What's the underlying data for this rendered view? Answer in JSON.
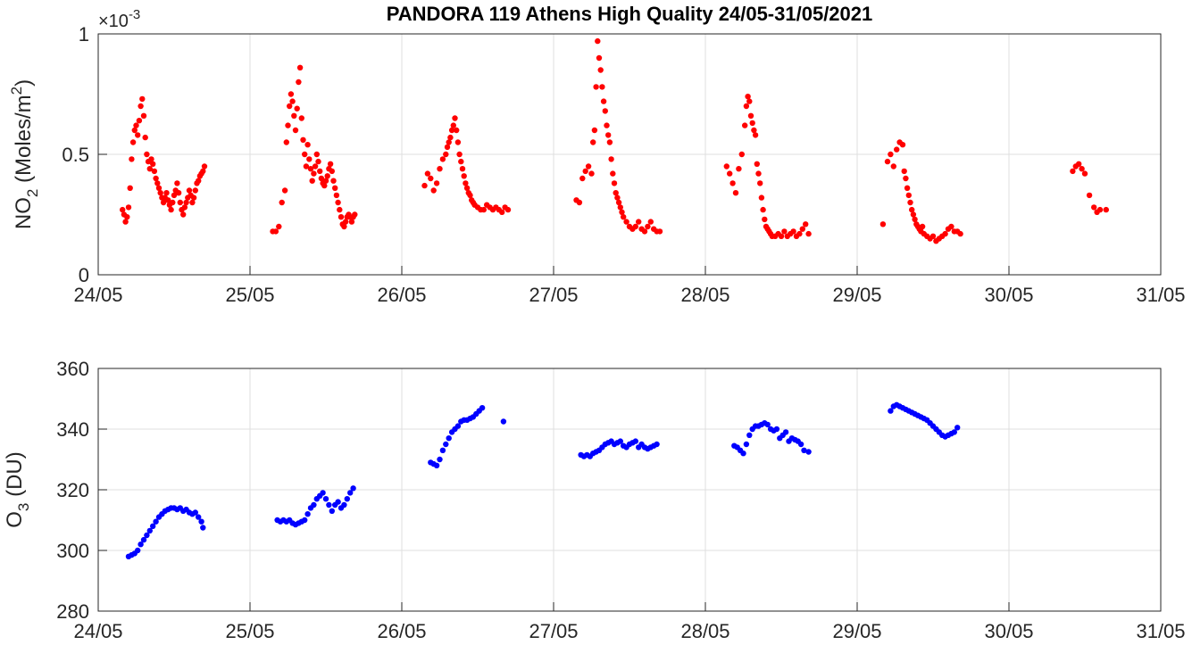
{
  "figure": {
    "title": "PANDORA 119 Athens High Quality 24/05-31/05/2021"
  },
  "chart_data": [
    {
      "type": "scatter",
      "id": "no2",
      "title": "PANDORA 119 Athens High Quality 24/05-31/05/2021",
      "ylabel_main": "NO",
      "ylabel_sub": "2",
      "ylabel_mid": " (Moles/m",
      "ylabel_sup": "2",
      "ylabel_end": ")",
      "y_exponent_label": "×10",
      "y_exponent_power": "-3",
      "xlim": [
        0,
        7
      ],
      "ylim": [
        0,
        1
      ],
      "xticks": [
        0,
        1,
        2,
        3,
        4,
        5,
        6,
        7
      ],
      "xtick_labels": [
        "24/05",
        "25/05",
        "26/05",
        "27/05",
        "28/05",
        "29/05",
        "30/05",
        "31/05"
      ],
      "yticks": [
        0,
        0.5,
        1
      ],
      "ytick_labels": [
        "0",
        "0.5",
        "1"
      ],
      "grid": true,
      "color": "#ff0000",
      "series": [
        {
          "x": [
            0.16,
            0.17,
            0.18,
            0.19,
            0.2,
            0.21,
            0.22,
            0.23,
            0.24,
            0.25,
            0.26,
            0.27,
            0.28,
            0.29,
            0.3,
            0.31,
            0.32,
            0.33,
            0.34,
            0.35,
            0.36,
            0.37,
            0.38,
            0.39,
            0.4,
            0.41,
            0.42,
            0.43,
            0.44,
            0.45,
            0.46,
            0.47,
            0.48,
            0.49,
            0.5,
            0.51,
            0.52,
            0.53,
            0.54,
            0.55,
            0.56,
            0.57,
            0.58,
            0.59,
            0.6,
            0.61,
            0.62,
            0.63,
            0.64,
            0.65,
            0.66,
            0.67,
            0.68,
            0.69,
            0.7,
            1.15,
            1.17,
            1.19,
            1.21,
            1.23,
            1.24,
            1.25,
            1.26,
            1.27,
            1.28,
            1.29,
            1.3,
            1.31,
            1.32,
            1.33,
            1.34,
            1.35,
            1.36,
            1.37,
            1.38,
            1.39,
            1.4,
            1.41,
            1.42,
            1.43,
            1.44,
            1.45,
            1.46,
            1.47,
            1.48,
            1.49,
            1.5,
            1.51,
            1.52,
            1.53,
            1.54,
            1.55,
            1.56,
            1.57,
            1.58,
            1.59,
            1.6,
            1.61,
            1.62,
            1.63,
            1.64,
            1.65,
            1.66,
            1.67,
            1.68,
            1.69,
            2.15,
            2.17,
            2.19,
            2.21,
            2.23,
            2.25,
            2.27,
            2.29,
            2.3,
            2.31,
            2.32,
            2.33,
            2.34,
            2.35,
            2.36,
            2.37,
            2.38,
            2.39,
            2.4,
            2.41,
            2.42,
            2.43,
            2.44,
            2.45,
            2.46,
            2.47,
            2.48,
            2.5,
            2.52,
            2.54,
            2.56,
            2.58,
            2.6,
            2.62,
            2.64,
            2.66,
            2.68,
            2.7,
            3.15,
            3.17,
            3.19,
            3.21,
            3.23,
            3.25,
            3.26,
            3.27,
            3.28,
            3.29,
            3.3,
            3.31,
            3.32,
            3.33,
            3.34,
            3.35,
            3.36,
            3.37,
            3.38,
            3.39,
            3.4,
            3.41,
            3.42,
            3.43,
            3.44,
            3.45,
            3.46,
            3.48,
            3.5,
            3.52,
            3.54,
            3.56,
            3.58,
            3.6,
            3.62,
            3.64,
            3.66,
            3.68,
            3.7,
            4.14,
            4.16,
            4.18,
            4.2,
            4.22,
            4.24,
            4.26,
            4.27,
            4.28,
            4.29,
            4.3,
            4.31,
            4.32,
            4.33,
            4.34,
            4.35,
            4.36,
            4.37,
            4.38,
            4.39,
            4.4,
            4.41,
            4.42,
            4.43,
            4.44,
            4.46,
            4.48,
            4.5,
            4.52,
            4.54,
            4.56,
            4.58,
            4.6,
            4.62,
            4.64,
            4.66,
            4.68,
            5.17,
            5.2,
            5.22,
            5.24,
            5.26,
            5.28,
            5.3,
            5.31,
            5.32,
            5.33,
            5.34,
            5.35,
            5.36,
            5.37,
            5.38,
            5.39,
            5.4,
            5.41,
            5.42,
            5.43,
            5.44,
            5.46,
            5.48,
            5.5,
            5.52,
            5.54,
            5.56,
            5.58,
            5.6,
            5.62,
            5.64,
            5.66,
            5.68,
            6.42,
            6.44,
            6.46,
            6.48,
            6.5,
            6.53,
            6.56,
            6.58,
            6.6,
            6.64
          ],
          "y": [
            0.27,
            0.25,
            0.22,
            0.24,
            0.28,
            0.36,
            0.48,
            0.55,
            0.6,
            0.62,
            0.58,
            0.64,
            0.7,
            0.73,
            0.66,
            0.57,
            0.5,
            0.47,
            0.44,
            0.48,
            0.46,
            0.43,
            0.4,
            0.38,
            0.36,
            0.34,
            0.32,
            0.3,
            0.32,
            0.34,
            0.31,
            0.29,
            0.27,
            0.3,
            0.33,
            0.35,
            0.38,
            0.34,
            0.3,
            0.27,
            0.25,
            0.28,
            0.3,
            0.32,
            0.35,
            0.33,
            0.3,
            0.32,
            0.35,
            0.38,
            0.39,
            0.41,
            0.42,
            0.43,
            0.45,
            0.18,
            0.18,
            0.2,
            0.3,
            0.35,
            0.55,
            0.62,
            0.7,
            0.75,
            0.72,
            0.66,
            0.6,
            0.69,
            0.8,
            0.86,
            0.65,
            0.56,
            0.5,
            0.45,
            0.54,
            0.48,
            0.44,
            0.39,
            0.42,
            0.45,
            0.5,
            0.47,
            0.43,
            0.4,
            0.38,
            0.37,
            0.39,
            0.41,
            0.44,
            0.46,
            0.43,
            0.39,
            0.36,
            0.33,
            0.3,
            0.27,
            0.24,
            0.21,
            0.2,
            0.22,
            0.24,
            0.25,
            0.24,
            0.22,
            0.24,
            0.25,
            0.37,
            0.42,
            0.4,
            0.35,
            0.38,
            0.44,
            0.48,
            0.5,
            0.53,
            0.55,
            0.57,
            0.6,
            0.62,
            0.65,
            0.6,
            0.55,
            0.5,
            0.47,
            0.44,
            0.41,
            0.38,
            0.36,
            0.34,
            0.33,
            0.31,
            0.3,
            0.29,
            0.28,
            0.27,
            0.27,
            0.29,
            0.28,
            0.27,
            0.28,
            0.27,
            0.26,
            0.28,
            0.27,
            0.31,
            0.3,
            0.4,
            0.43,
            0.45,
            0.42,
            0.55,
            0.6,
            0.78,
            0.97,
            0.9,
            0.85,
            0.78,
            0.72,
            0.68,
            0.62,
            0.58,
            0.55,
            0.48,
            0.42,
            0.38,
            0.34,
            0.32,
            0.3,
            0.28,
            0.26,
            0.24,
            0.22,
            0.2,
            0.19,
            0.2,
            0.22,
            0.19,
            0.18,
            0.2,
            0.22,
            0.19,
            0.18,
            0.18,
            0.45,
            0.42,
            0.38,
            0.34,
            0.44,
            0.5,
            0.62,
            0.7,
            0.74,
            0.72,
            0.66,
            0.63,
            0.6,
            0.58,
            0.46,
            0.42,
            0.38,
            0.32,
            0.27,
            0.23,
            0.2,
            0.19,
            0.18,
            0.17,
            0.16,
            0.16,
            0.17,
            0.16,
            0.18,
            0.16,
            0.17,
            0.18,
            0.16,
            0.17,
            0.19,
            0.21,
            0.17,
            0.21,
            0.47,
            0.5,
            0.45,
            0.52,
            0.55,
            0.54,
            0.43,
            0.4,
            0.36,
            0.33,
            0.3,
            0.27,
            0.25,
            0.23,
            0.21,
            0.2,
            0.19,
            0.18,
            0.2,
            0.17,
            0.16,
            0.15,
            0.16,
            0.14,
            0.15,
            0.16,
            0.17,
            0.19,
            0.2,
            0.18,
            0.18,
            0.17,
            0.43,
            0.45,
            0.46,
            0.44,
            0.42,
            0.33,
            0.28,
            0.26,
            0.27,
            0.27
          ]
        }
      ]
    },
    {
      "type": "scatter",
      "id": "o3",
      "ylabel_main": "O",
      "ylabel_sub": "3",
      "ylabel_end": " (DU)",
      "xlim": [
        0,
        7
      ],
      "ylim": [
        280,
        360
      ],
      "xticks": [
        0,
        1,
        2,
        3,
        4,
        5,
        6,
        7
      ],
      "xtick_labels": [
        "24/05",
        "25/05",
        "26/05",
        "27/05",
        "28/05",
        "29/05",
        "30/05",
        "31/05"
      ],
      "yticks": [
        280,
        300,
        320,
        340,
        360
      ],
      "ytick_labels": [
        "280",
        "300",
        "320",
        "340",
        "360"
      ],
      "grid": true,
      "color": "#0000ff",
      "series": [
        {
          "x": [
            0.2,
            0.22,
            0.24,
            0.26,
            0.28,
            0.3,
            0.32,
            0.34,
            0.36,
            0.38,
            0.4,
            0.42,
            0.44,
            0.46,
            0.48,
            0.5,
            0.52,
            0.54,
            0.56,
            0.58,
            0.6,
            0.62,
            0.64,
            0.66,
            0.68,
            0.69,
            1.18,
            1.2,
            1.22,
            1.24,
            1.26,
            1.28,
            1.3,
            1.32,
            1.34,
            1.36,
            1.38,
            1.4,
            1.42,
            1.44,
            1.46,
            1.48,
            1.5,
            1.52,
            1.54,
            1.56,
            1.58,
            1.6,
            1.62,
            1.64,
            1.66,
            1.68,
            2.19,
            2.21,
            2.23,
            2.25,
            2.27,
            2.29,
            2.31,
            2.33,
            2.35,
            2.37,
            2.39,
            2.41,
            2.43,
            2.45,
            2.47,
            2.49,
            2.51,
            2.53,
            2.67,
            3.18,
            3.2,
            3.22,
            3.24,
            3.26,
            3.28,
            3.3,
            3.32,
            3.34,
            3.36,
            3.38,
            3.4,
            3.42,
            3.44,
            3.46,
            3.48,
            3.5,
            3.52,
            3.54,
            3.56,
            3.58,
            3.6,
            3.62,
            3.64,
            3.66,
            3.68,
            4.19,
            4.21,
            4.23,
            4.25,
            4.27,
            4.29,
            4.31,
            4.33,
            4.35,
            4.37,
            4.39,
            4.41,
            4.43,
            4.45,
            4.47,
            4.49,
            4.51,
            4.53,
            4.55,
            4.57,
            4.59,
            4.61,
            4.63,
            4.65,
            4.68,
            5.22,
            5.24,
            5.26,
            5.28,
            5.3,
            5.32,
            5.34,
            5.36,
            5.38,
            5.4,
            5.42,
            5.44,
            5.46,
            5.48,
            5.5,
            5.52,
            5.54,
            5.56,
            5.58,
            5.6,
            5.62,
            5.64,
            5.66
          ],
          "y": [
            298,
            298.5,
            299,
            300,
            302,
            303.5,
            305,
            306.5,
            308,
            309.5,
            311,
            312,
            313,
            313.5,
            314,
            314,
            313.5,
            314,
            313,
            313.5,
            312.5,
            312,
            312.5,
            311,
            309.5,
            307.5,
            310,
            309.5,
            310,
            309.5,
            310,
            309,
            308.5,
            309,
            309.5,
            310,
            312,
            314,
            315,
            317,
            318,
            319,
            317,
            315,
            313,
            315,
            316,
            314,
            315,
            317,
            319,
            320.5,
            329,
            328.5,
            328,
            330,
            333,
            335,
            337,
            339,
            340,
            341,
            342.5,
            343,
            343,
            343.5,
            344,
            345,
            346,
            347,
            342.5,
            331.5,
            331,
            331.5,
            331,
            332,
            332.5,
            333,
            334,
            335,
            335.5,
            336,
            335,
            335.5,
            336,
            334.5,
            334,
            335,
            335.5,
            336,
            334,
            335,
            334,
            333.5,
            334,
            334.5,
            335,
            334.5,
            334,
            333,
            332,
            335,
            338,
            340,
            341,
            341,
            341.5,
            342,
            341.5,
            340,
            339.5,
            340,
            337,
            338,
            339,
            336,
            337,
            336.5,
            336,
            335,
            333,
            332.5,
            346,
            347.5,
            348,
            347.5,
            347,
            346.5,
            346,
            345.5,
            345,
            344.5,
            344,
            343.5,
            343,
            342,
            341,
            340,
            339,
            338,
            337.5,
            338,
            338.5,
            339,
            340.5
          ]
        }
      ]
    }
  ]
}
